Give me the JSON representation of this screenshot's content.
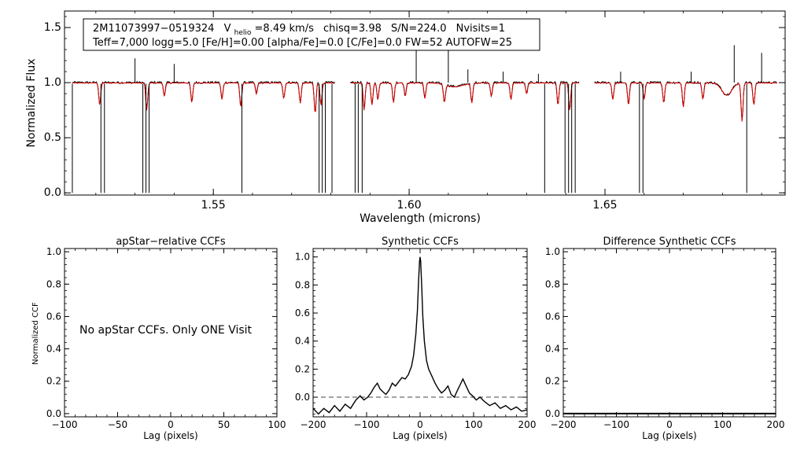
{
  "chart_data": [
    {
      "type": "line",
      "name": "spectrum",
      "title": "",
      "xlabel": "Wavelength (microns)",
      "ylabel": "Normalized Flux",
      "xlim": [
        1.512,
        1.696
      ],
      "ylim": [
        -0.02,
        1.65
      ],
      "xticks": [
        {
          "v": 1.55,
          "label": "1.55"
        },
        {
          "v": 1.6,
          "label": "1.60"
        },
        {
          "v": 1.65,
          "label": "1.65"
        }
      ],
      "yticks": [
        {
          "v": 0.0,
          "label": "0.0"
        },
        {
          "v": 0.5,
          "label": "0.5"
        },
        {
          "v": 1.0,
          "label": "1.0"
        },
        {
          "v": 1.5,
          "label": "1.5"
        }
      ],
      "chips": [
        [
          1.514,
          1.581
        ],
        [
          1.585,
          1.6434
        ],
        [
          1.6473,
          1.694
        ]
      ],
      "observed_dropouts": [
        1.514,
        1.5213,
        1.5222,
        1.532,
        1.5328,
        1.5336,
        1.5573,
        1.577,
        1.5778,
        1.5786,
        1.5803,
        1.5862,
        1.587,
        1.588,
        1.6346,
        1.6398,
        1.6407,
        1.6415,
        1.6424,
        1.6588,
        1.6597,
        1.6862
      ],
      "observed_spikes": [
        {
          "x": 1.53,
          "y": 1.22
        },
        {
          "x": 1.54,
          "y": 1.17
        },
        {
          "x": 1.6018,
          "y": 1.33
        },
        {
          "x": 1.61,
          "y": 1.3
        },
        {
          "x": 1.615,
          "y": 1.12
        },
        {
          "x": 1.624,
          "y": 1.1
        },
        {
          "x": 1.633,
          "y": 1.08
        },
        {
          "x": 1.654,
          "y": 1.1
        },
        {
          "x": 1.672,
          "y": 1.1
        },
        {
          "x": 1.683,
          "y": 1.34
        },
        {
          "x": 1.69,
          "y": 1.27
        }
      ],
      "model_lines": [
        {
          "x": 1.521,
          "d": 0.2
        },
        {
          "x": 1.533,
          "d": 0.25
        },
        {
          "x": 1.5375,
          "d": 0.12
        },
        {
          "x": 1.5445,
          "d": 0.18
        },
        {
          "x": 1.5522,
          "d": 0.15
        },
        {
          "x": 1.557,
          "d": 0.22
        },
        {
          "x": 1.561,
          "d": 0.1
        },
        {
          "x": 1.568,
          "d": 0.14
        },
        {
          "x": 1.5722,
          "d": 0.18
        },
        {
          "x": 1.576,
          "d": 0.28
        },
        {
          "x": 1.5775,
          "d": 0.2
        },
        {
          "x": 1.5885,
          "d": 0.25
        },
        {
          "x": 1.5905,
          "d": 0.2
        },
        {
          "x": 1.592,
          "d": 0.15
        },
        {
          "x": 1.596,
          "d": 0.18
        },
        {
          "x": 1.599,
          "d": 0.12
        },
        {
          "x": 1.604,
          "d": 0.14
        },
        {
          "x": 1.609,
          "d": 0.16
        },
        {
          "x": 1.616,
          "d": 0.18
        },
        {
          "x": 1.621,
          "d": 0.12
        },
        {
          "x": 1.626,
          "d": 0.15
        },
        {
          "x": 1.63,
          "d": 0.1
        },
        {
          "x": 1.638,
          "d": 0.2
        },
        {
          "x": 1.641,
          "d": 0.25
        },
        {
          "x": 1.652,
          "d": 0.15
        },
        {
          "x": 1.656,
          "d": 0.2
        },
        {
          "x": 1.66,
          "d": 0.15
        },
        {
          "x": 1.665,
          "d": 0.18
        },
        {
          "x": 1.67,
          "d": 0.22
        },
        {
          "x": 1.675,
          "d": 0.15
        },
        {
          "x": 1.685,
          "d": 0.35
        },
        {
          "x": 1.688,
          "d": 0.2
        }
      ],
      "broad_features": [
        {
          "x": 1.6116,
          "d": 0.035,
          "w": 0.003
        },
        {
          "x": 1.6811,
          "d": 0.11,
          "w": 0.0018
        }
      ],
      "info": {
        "object": "2M11073997−0519324",
        "vhelio_prefix": "V",
        "vhelio_sub": "helio",
        "vhelio_value": "=8.49 km/s",
        "chisq": "chisq=3.98",
        "sn": "S/N=224.0",
        "nvisits": "Nvisits=1",
        "params": "Teff=7,000 logg=5.0 [Fe/H]=0.00 [alpha/Fe]=0.0 [C/Fe]=0.0 FW=52 AUTOFW=25"
      }
    },
    {
      "type": "line",
      "name": "apstar-relative-ccfs",
      "title": "apStar−relative CCFs",
      "xlabel": "Lag (pixels)",
      "ylabel": "Normalized CCF",
      "xlim": [
        -100,
        100
      ],
      "ylim": [
        -0.02,
        1.02
      ],
      "xticks": [
        {
          "v": -100,
          "label": "−100"
        },
        {
          "v": -50,
          "label": "−50"
        },
        {
          "v": 0,
          "label": "0"
        },
        {
          "v": 50,
          "label": "50"
        },
        {
          "v": 100,
          "label": "100"
        }
      ],
      "yticks": [
        {
          "v": 0.0,
          "label": "0.0"
        },
        {
          "v": 0.2,
          "label": "0.2"
        },
        {
          "v": 0.4,
          "label": "0.4"
        },
        {
          "v": 0.6,
          "label": "0.6"
        },
        {
          "v": 0.8,
          "label": "0.8"
        },
        {
          "v": 1.0,
          "label": "1.0"
        }
      ],
      "message": "No apStar CCFs.  Only ONE Visit",
      "series": []
    },
    {
      "type": "line",
      "name": "synthetic-ccfs",
      "title": "Synthetic CCFs",
      "xlabel": "Lag (pixels)",
      "ylabel": "",
      "xlim": [
        -200,
        200
      ],
      "ylim": [
        -0.14,
        1.06
      ],
      "xticks": [
        {
          "v": -200,
          "label": "−200"
        },
        {
          "v": -100,
          "label": "−100"
        },
        {
          "v": 0,
          "label": "0"
        },
        {
          "v": 100,
          "label": "100"
        },
        {
          "v": 200,
          "label": "200"
        }
      ],
      "yticks": [
        {
          "v": 0.0,
          "label": "0.0"
        },
        {
          "v": 0.2,
          "label": "0.2"
        },
        {
          "v": 0.4,
          "label": "0.4"
        },
        {
          "v": 0.6,
          "label": "0.6"
        },
        {
          "v": 0.8,
          "label": "0.8"
        },
        {
          "v": 1.0,
          "label": "1.0"
        }
      ],
      "reference_line": 0.0,
      "series": [
        {
          "name": "CCF",
          "x": [
            -200,
            -190,
            -180,
            -170,
            -160,
            -150,
            -140,
            -130,
            -120,
            -112,
            -105,
            -98,
            -92,
            -86,
            -80,
            -75,
            -70,
            -64,
            -58,
            -52,
            -46,
            -40,
            -34,
            -28,
            -22,
            -16,
            -12,
            -8,
            -5,
            -3,
            -1,
            0,
            1,
            3,
            5,
            8,
            12,
            16,
            22,
            28,
            34,
            40,
            46,
            52,
            58,
            64,
            70,
            75,
            80,
            86,
            92,
            98,
            105,
            112,
            120,
            130,
            140,
            150,
            160,
            170,
            180,
            190,
            200
          ],
          "y": [
            -0.08,
            -0.12,
            -0.08,
            -0.11,
            -0.06,
            -0.1,
            -0.05,
            -0.08,
            -0.02,
            0.01,
            -0.02,
            0.0,
            0.03,
            0.07,
            0.1,
            0.06,
            0.04,
            0.02,
            0.05,
            0.1,
            0.08,
            0.11,
            0.14,
            0.13,
            0.16,
            0.22,
            0.3,
            0.45,
            0.62,
            0.82,
            0.97,
            1.0,
            0.97,
            0.8,
            0.58,
            0.4,
            0.26,
            0.2,
            0.15,
            0.1,
            0.06,
            0.03,
            0.05,
            0.08,
            0.02,
            0.0,
            0.05,
            0.09,
            0.13,
            0.08,
            0.03,
            0.01,
            -0.02,
            0.0,
            -0.03,
            -0.06,
            -0.04,
            -0.08,
            -0.06,
            -0.09,
            -0.07,
            -0.1,
            -0.09
          ]
        }
      ]
    },
    {
      "type": "line",
      "name": "difference-synthetic-ccfs",
      "title": "Difference Synthetic CCFs",
      "xlabel": "Lag (pixels)",
      "ylabel": "",
      "xlim": [
        -200,
        200
      ],
      "ylim": [
        -0.02,
        1.02
      ],
      "xticks": [
        {
          "v": -200,
          "label": "−200"
        },
        {
          "v": -100,
          "label": "−100"
        },
        {
          "v": 0,
          "label": "0"
        },
        {
          "v": 100,
          "label": "100"
        },
        {
          "v": 200,
          "label": "200"
        }
      ],
      "yticks": [
        {
          "v": 0.0,
          "label": "0.0"
        },
        {
          "v": 0.2,
          "label": "0.2"
        },
        {
          "v": 0.4,
          "label": "0.4"
        },
        {
          "v": 0.6,
          "label": "0.6"
        },
        {
          "v": 0.8,
          "label": "0.8"
        },
        {
          "v": 1.0,
          "label": "1.0"
        }
      ],
      "series": [
        {
          "name": "difference",
          "x": [
            -200,
            200
          ],
          "y": [
            0.0,
            0.0
          ]
        }
      ]
    }
  ]
}
